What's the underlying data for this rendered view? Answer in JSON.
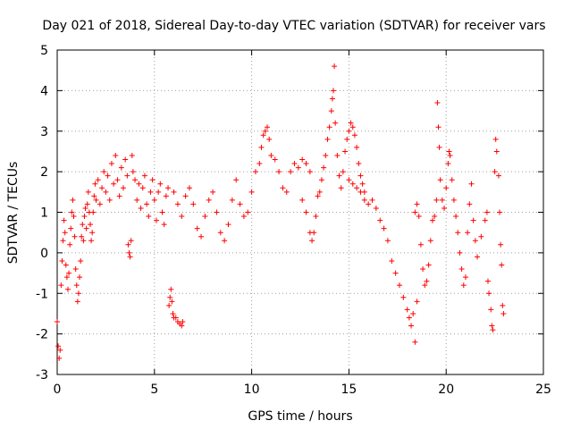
{
  "chart_data": {
    "type": "scatter",
    "title": "Day 021 of 2018, Sidereal Day-to-day VTEC variation (SDTVAR) for receiver vars",
    "xlabel": "GPS time / hours",
    "ylabel": "SDTVAR / TECUs",
    "xlim": [
      0,
      25
    ],
    "ylim": [
      -3,
      5
    ],
    "xticks": [
      0,
      5,
      10,
      15,
      20,
      25
    ],
    "yticks": [
      -3,
      -2,
      -1,
      0,
      1,
      2,
      3,
      4,
      5
    ],
    "grid": true,
    "marker": "+",
    "series": [
      {
        "name": "vars",
        "color": "#ff0000",
        "points": [
          [
            0.0,
            -1.7
          ],
          [
            0.05,
            -2.3
          ],
          [
            0.1,
            -2.6
          ],
          [
            0.15,
            -2.4
          ],
          [
            0.2,
            -0.8
          ],
          [
            0.25,
            -0.2
          ],
          [
            0.3,
            0.3
          ],
          [
            0.35,
            0.8
          ],
          [
            0.4,
            0.5
          ],
          [
            0.45,
            -0.3
          ],
          [
            0.5,
            -0.6
          ],
          [
            0.55,
            -0.9
          ],
          [
            0.6,
            -0.5
          ],
          [
            0.65,
            0.2
          ],
          [
            0.7,
            0.6
          ],
          [
            0.75,
            1.0
          ],
          [
            0.8,
            1.3
          ],
          [
            0.85,
            0.9
          ],
          [
            0.9,
            0.4
          ],
          [
            0.95,
            -0.4
          ],
          [
            1.0,
            -0.8
          ],
          [
            1.05,
            -1.2
          ],
          [
            1.1,
            -1.0
          ],
          [
            1.15,
            -0.6
          ],
          [
            1.2,
            -0.2
          ],
          [
            1.25,
            0.4
          ],
          [
            1.3,
            0.7
          ],
          [
            1.35,
            0.3
          ],
          [
            1.4,
            0.9
          ],
          [
            1.45,
            1.1
          ],
          [
            1.5,
            0.6
          ],
          [
            1.55,
            1.2
          ],
          [
            1.6,
            1.5
          ],
          [
            1.65,
            1.0
          ],
          [
            1.7,
            0.7
          ],
          [
            1.75,
            0.3
          ],
          [
            1.8,
            0.5
          ],
          [
            1.85,
            1.0
          ],
          [
            1.9,
            1.4
          ],
          [
            1.95,
            1.7
          ],
          [
            2.0,
            1.3
          ],
          [
            2.1,
            1.8
          ],
          [
            2.2,
            1.2
          ],
          [
            2.3,
            1.6
          ],
          [
            2.4,
            2.0
          ],
          [
            2.5,
            1.5
          ],
          [
            2.6,
            1.9
          ],
          [
            2.7,
            1.3
          ],
          [
            2.8,
            2.2
          ],
          [
            2.9,
            1.7
          ],
          [
            3.0,
            2.4
          ],
          [
            3.1,
            1.8
          ],
          [
            3.2,
            1.4
          ],
          [
            3.3,
            2.1
          ],
          [
            3.4,
            1.6
          ],
          [
            3.5,
            2.3
          ],
          [
            3.6,
            1.9
          ],
          [
            3.65,
            0.2
          ],
          [
            3.7,
            0.0
          ],
          [
            3.75,
            -0.1
          ],
          [
            3.8,
            0.3
          ],
          [
            3.85,
            2.4
          ],
          [
            3.9,
            2.0
          ],
          [
            4.0,
            1.8
          ],
          [
            4.1,
            1.3
          ],
          [
            4.2,
            1.7
          ],
          [
            4.3,
            1.1
          ],
          [
            4.4,
            1.6
          ],
          [
            4.5,
            1.9
          ],
          [
            4.6,
            1.2
          ],
          [
            4.7,
            0.9
          ],
          [
            4.8,
            1.5
          ],
          [
            4.9,
            1.8
          ],
          [
            5.0,
            1.3
          ],
          [
            5.1,
            0.8
          ],
          [
            5.2,
            1.5
          ],
          [
            5.3,
            1.7
          ],
          [
            5.4,
            1.0
          ],
          [
            5.5,
            0.7
          ],
          [
            5.6,
            1.4
          ],
          [
            5.7,
            1.6
          ],
          [
            5.75,
            -1.3
          ],
          [
            5.8,
            -1.1
          ],
          [
            5.85,
            -0.9
          ],
          [
            5.9,
            -1.2
          ],
          [
            5.95,
            -1.5
          ],
          [
            6.0,
            -1.6
          ],
          [
            6.1,
            -1.6
          ],
          [
            6.2,
            -1.7
          ],
          [
            6.3,
            -1.75
          ],
          [
            6.4,
            -1.8
          ],
          [
            6.45,
            -1.7
          ],
          [
            6.0,
            1.5
          ],
          [
            6.2,
            1.2
          ],
          [
            6.4,
            0.9
          ],
          [
            6.6,
            1.4
          ],
          [
            6.8,
            1.6
          ],
          [
            7.0,
            1.2
          ],
          [
            7.2,
            0.6
          ],
          [
            7.4,
            0.4
          ],
          [
            7.6,
            0.9
          ],
          [
            7.8,
            1.3
          ],
          [
            8.0,
            1.5
          ],
          [
            8.2,
            1.0
          ],
          [
            8.4,
            0.5
          ],
          [
            8.6,
            0.3
          ],
          [
            8.8,
            0.7
          ],
          [
            9.0,
            1.3
          ],
          [
            9.2,
            1.8
          ],
          [
            9.4,
            1.2
          ],
          [
            9.6,
            0.9
          ],
          [
            9.8,
            1.0
          ],
          [
            10.0,
            1.5
          ],
          [
            10.2,
            2.0
          ],
          [
            10.4,
            2.2
          ],
          [
            10.5,
            2.6
          ],
          [
            10.6,
            2.9
          ],
          [
            10.7,
            3.0
          ],
          [
            10.8,
            3.1
          ],
          [
            10.9,
            2.8
          ],
          [
            11.0,
            2.4
          ],
          [
            11.2,
            2.3
          ],
          [
            11.4,
            2.0
          ],
          [
            11.6,
            1.6
          ],
          [
            11.8,
            1.5
          ],
          [
            12.0,
            2.0
          ],
          [
            12.2,
            2.2
          ],
          [
            12.4,
            2.1
          ],
          [
            12.6,
            2.3
          ],
          [
            12.8,
            2.2
          ],
          [
            13.0,
            2.0
          ],
          [
            12.6,
            1.3
          ],
          [
            12.8,
            1.0
          ],
          [
            13.0,
            0.5
          ],
          [
            13.1,
            0.3
          ],
          [
            13.2,
            0.5
          ],
          [
            13.3,
            0.9
          ],
          [
            13.4,
            1.4
          ],
          [
            13.5,
            1.5
          ],
          [
            13.6,
            1.8
          ],
          [
            13.7,
            2.1
          ],
          [
            13.8,
            2.4
          ],
          [
            13.9,
            2.8
          ],
          [
            14.0,
            3.1
          ],
          [
            14.1,
            3.5
          ],
          [
            14.15,
            3.8
          ],
          [
            14.2,
            4.0
          ],
          [
            14.25,
            4.6
          ],
          [
            14.3,
            3.2
          ],
          [
            14.4,
            2.4
          ],
          [
            14.5,
            1.9
          ],
          [
            14.6,
            1.6
          ],
          [
            14.7,
            2.0
          ],
          [
            14.8,
            2.5
          ],
          [
            14.9,
            2.8
          ],
          [
            15.0,
            3.0
          ],
          [
            15.1,
            3.2
          ],
          [
            15.2,
            3.1
          ],
          [
            15.3,
            2.9
          ],
          [
            15.4,
            2.6
          ],
          [
            15.5,
            2.2
          ],
          [
            15.6,
            1.9
          ],
          [
            15.7,
            1.7
          ],
          [
            15.8,
            1.5
          ],
          [
            15.0,
            1.8
          ],
          [
            15.2,
            1.7
          ],
          [
            15.4,
            1.6
          ],
          [
            15.6,
            1.5
          ],
          [
            15.8,
            1.3
          ],
          [
            16.0,
            1.2
          ],
          [
            16.2,
            1.3
          ],
          [
            16.4,
            1.1
          ],
          [
            16.6,
            0.8
          ],
          [
            16.8,
            0.6
          ],
          [
            17.0,
            0.3
          ],
          [
            17.2,
            -0.2
          ],
          [
            17.4,
            -0.5
          ],
          [
            17.6,
            -0.8
          ],
          [
            17.8,
            -1.1
          ],
          [
            18.0,
            -1.4
          ],
          [
            18.1,
            -1.6
          ],
          [
            18.2,
            -1.8
          ],
          [
            18.3,
            -1.5
          ],
          [
            18.4,
            -2.2
          ],
          [
            18.5,
            -1.2
          ],
          [
            18.4,
            1.0
          ],
          [
            18.5,
            1.2
          ],
          [
            18.6,
            0.9
          ],
          [
            18.7,
            0.2
          ],
          [
            18.8,
            -0.4
          ],
          [
            18.9,
            -0.8
          ],
          [
            19.0,
            -0.7
          ],
          [
            19.1,
            -0.3
          ],
          [
            19.2,
            0.3
          ],
          [
            19.3,
            0.8
          ],
          [
            19.4,
            0.9
          ],
          [
            19.5,
            1.3
          ],
          [
            19.55,
            3.7
          ],
          [
            19.6,
            3.1
          ],
          [
            19.65,
            2.6
          ],
          [
            19.7,
            1.8
          ],
          [
            19.8,
            1.3
          ],
          [
            19.9,
            1.1
          ],
          [
            20.0,
            1.6
          ],
          [
            20.1,
            2.2
          ],
          [
            20.15,
            2.5
          ],
          [
            20.2,
            2.4
          ],
          [
            20.3,
            1.8
          ],
          [
            20.4,
            1.3
          ],
          [
            20.5,
            0.9
          ],
          [
            20.6,
            0.5
          ],
          [
            20.7,
            0.0
          ],
          [
            20.8,
            -0.4
          ],
          [
            20.9,
            -0.8
          ],
          [
            21.0,
            -0.6
          ],
          [
            21.1,
            0.5
          ],
          [
            21.2,
            1.2
          ],
          [
            21.3,
            1.7
          ],
          [
            21.4,
            0.8
          ],
          [
            21.5,
            0.3
          ],
          [
            21.6,
            -0.1
          ],
          [
            21.8,
            0.4
          ],
          [
            22.0,
            0.8
          ],
          [
            22.1,
            1.0
          ],
          [
            22.15,
            -0.7
          ],
          [
            22.2,
            -1.0
          ],
          [
            22.3,
            -1.4
          ],
          [
            22.35,
            -1.8
          ],
          [
            22.4,
            -1.9
          ],
          [
            22.5,
            2.0
          ],
          [
            22.55,
            2.8
          ],
          [
            22.6,
            2.5
          ],
          [
            22.7,
            1.9
          ],
          [
            22.75,
            1.0
          ],
          [
            22.8,
            0.2
          ],
          [
            22.85,
            -0.3
          ],
          [
            22.9,
            -1.3
          ],
          [
            22.95,
            -1.5
          ]
        ]
      }
    ]
  }
}
